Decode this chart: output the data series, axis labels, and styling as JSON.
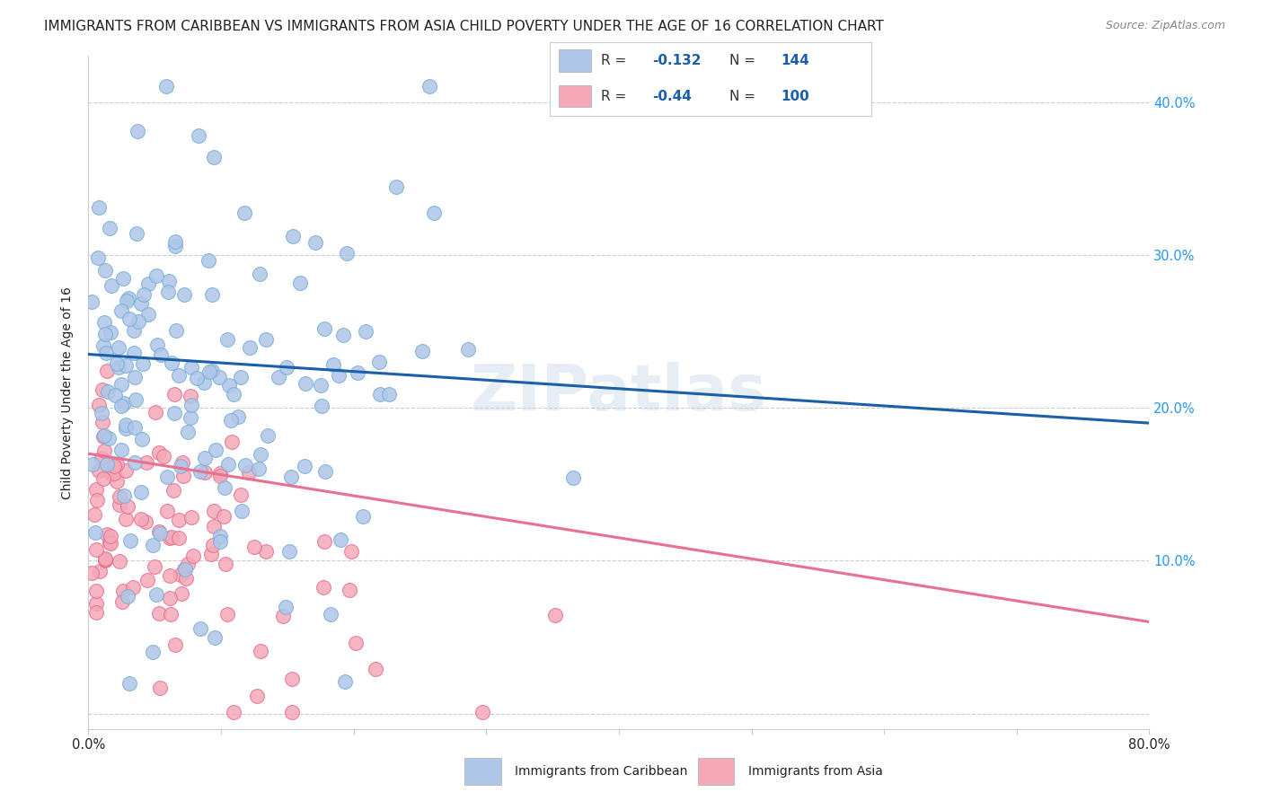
{
  "title": "IMMIGRANTS FROM CARIBBEAN VS IMMIGRANTS FROM ASIA CHILD POVERTY UNDER THE AGE OF 16 CORRELATION CHART",
  "source": "Source: ZipAtlas.com",
  "ylabel": "Child Poverty Under the Age of 16",
  "xlim": [
    0.0,
    0.8
  ],
  "ylim": [
    -0.01,
    0.43
  ],
  "xticks": [
    0.0,
    0.1,
    0.2,
    0.3,
    0.4,
    0.5,
    0.6,
    0.7,
    0.8
  ],
  "xticklabels": [
    "0.0%",
    "",
    "",
    "",
    "",
    "",
    "",
    "",
    "80.0%"
  ],
  "yticks": [
    0.0,
    0.1,
    0.2,
    0.3,
    0.4
  ],
  "yticklabels_right": [
    "",
    "10.0%",
    "20.0%",
    "30.0%",
    "40.0%"
  ],
  "caribbean_R": -0.132,
  "caribbean_N": 144,
  "asia_R": -0.44,
  "asia_N": 100,
  "caribbean_color": "#aec6e8",
  "caribbean_edge": "#7aaed6",
  "asia_color": "#f4a8b8",
  "asia_edge": "#e87090",
  "trend_caribbean_color": "#1a5fa8",
  "trend_asia_color": "#e87090",
  "trend_car_y0": 0.235,
  "trend_car_y1": 0.19,
  "trend_asia_y0": 0.17,
  "trend_asia_y1": 0.06,
  "legend_label_caribbean": "Immigrants from Caribbean",
  "legend_label_asia": "Immigrants from Asia",
  "watermark": "ZIPatlas",
  "background_color": "#ffffff",
  "grid_color": "#cccccc",
  "title_fontsize": 11,
  "axis_label_fontsize": 10,
  "tick_fontsize": 10.5,
  "legend_fontsize": 11
}
